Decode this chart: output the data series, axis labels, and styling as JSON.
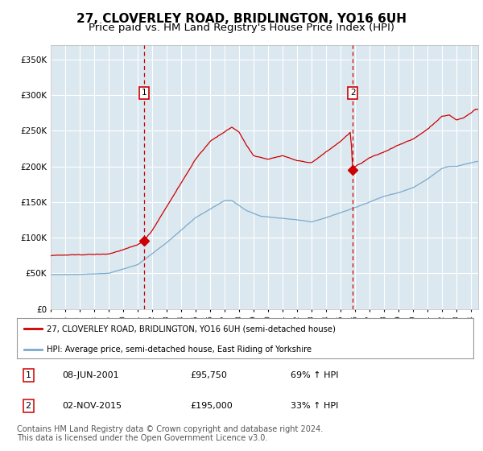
{
  "title": "27, CLOVERLEY ROAD, BRIDLINGTON, YO16 6UH",
  "subtitle": "Price paid vs. HM Land Registry's House Price Index (HPI)",
  "legend_red": "27, CLOVERLEY ROAD, BRIDLINGTON, YO16 6UH (semi-detached house)",
  "legend_blue": "HPI: Average price, semi-detached house, East Riding of Yorkshire",
  "annotation1_date": "08-JUN-2001",
  "annotation1_price": "£95,750",
  "annotation1_hpi": "69% ↑ HPI",
  "annotation2_date": "02-NOV-2015",
  "annotation2_price": "£195,000",
  "annotation2_hpi": "33% ↑ HPI",
  "footer": "Contains HM Land Registry data © Crown copyright and database right 2024.\nThis data is licensed under the Open Government Licence v3.0.",
  "red_color": "#cc0000",
  "blue_color": "#7aaacc",
  "vline_color": "#cc0000",
  "marker_color": "#cc0000",
  "plot_bg_color": "#dce8f0",
  "ylim": [
    0,
    370000
  ],
  "yticks": [
    0,
    50000,
    100000,
    150000,
    200000,
    250000,
    300000,
    350000
  ],
  "xlim_start": 1995.0,
  "xlim_end": 2024.5,
  "sale1_year": 2001.44,
  "sale1_price": 95750,
  "sale2_year": 2015.84,
  "sale2_price": 195000,
  "title_fontsize": 11,
  "subtitle_fontsize": 9.5,
  "footer_fontsize": 7
}
